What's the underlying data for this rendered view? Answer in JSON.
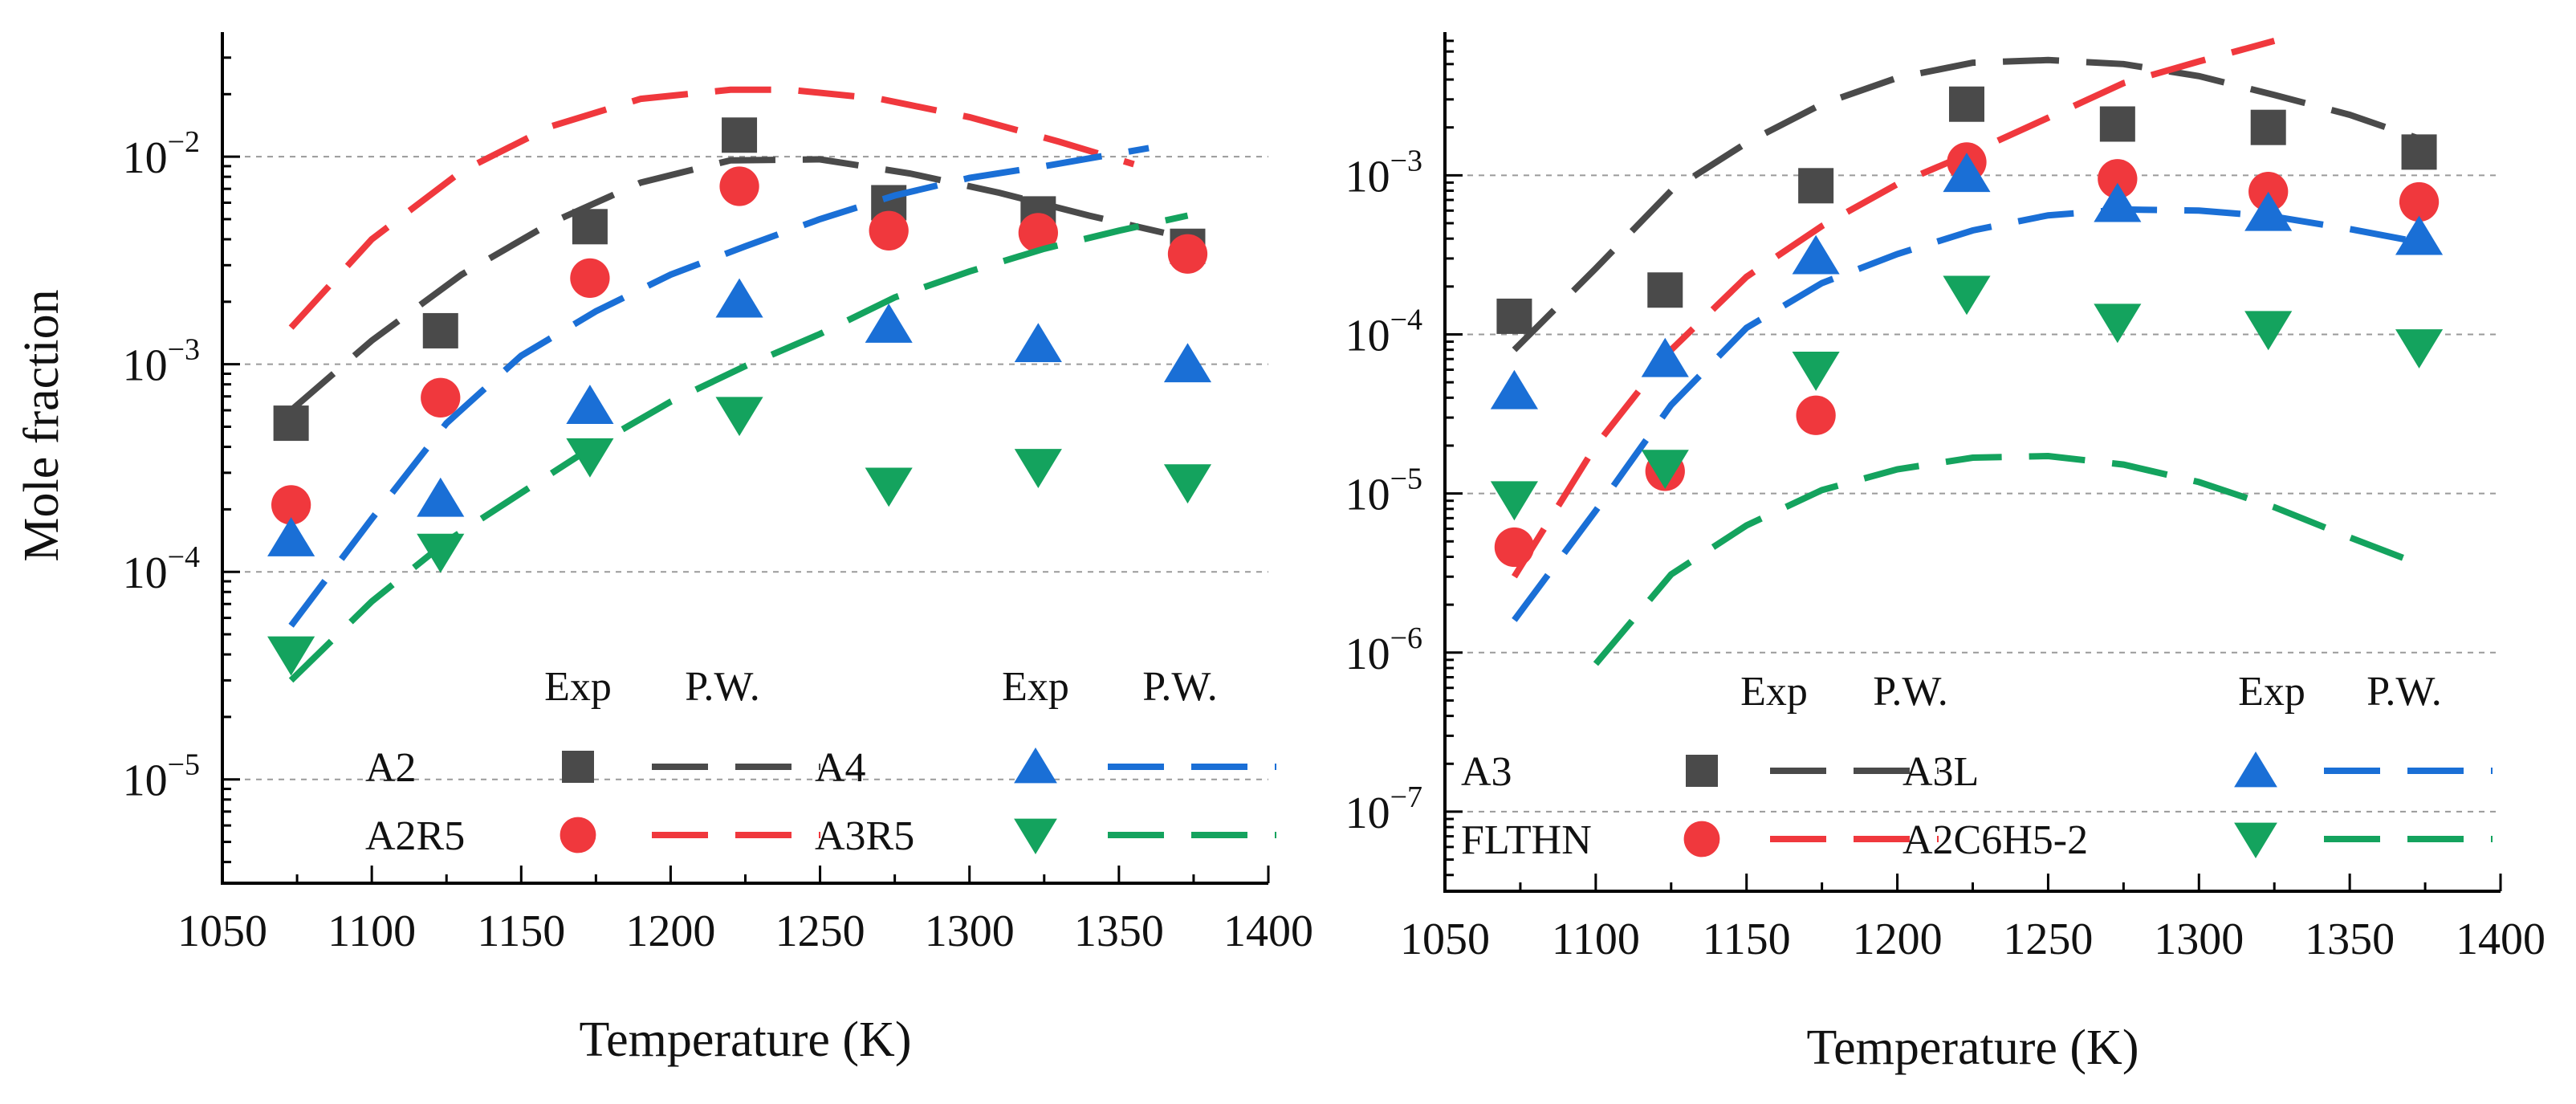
{
  "chart_data": [
    {
      "type": "scatter",
      "title": "",
      "xlabel": "Temperature (K)",
      "ylabel": "Mole fraction",
      "xlim": [
        1050,
        1400
      ],
      "ylim_log10": [
        -5.5,
        -1.4
      ],
      "y_scale": "log",
      "x_ticks": [
        "1050",
        "1100",
        "1150",
        "1200",
        "1250",
        "1300",
        "1350",
        "1400"
      ],
      "y_ticks": [
        {
          "base": "10",
          "exp": "−2",
          "value": 0.01
        },
        {
          "base": "10",
          "exp": "−3",
          "value": 0.001
        },
        {
          "base": "10",
          "exp": "−4",
          "value": 0.0001
        },
        {
          "base": "10",
          "exp": "−5",
          "value": 1e-05
        }
      ],
      "grid": "horizontal-dashed",
      "legend": {
        "headers": [
          "Exp",
          "P.W."
        ],
        "entries": [
          {
            "name": "A2",
            "color": "#4a4a4a",
            "marker": "square"
          },
          {
            "name": "A4",
            "color": "#1a6fd6",
            "marker": "triangle-up"
          },
          {
            "name": "A2R5",
            "color": "#f0383d",
            "marker": "circle"
          },
          {
            "name": "A3R5",
            "color": "#14a35e",
            "marker": "triangle-down"
          }
        ]
      },
      "series": [
        {
          "name": "A2",
          "color": "#4a4a4a",
          "marker": "square",
          "exp": {
            "x": [
              1073,
              1123,
              1173,
              1223,
              1273,
              1323,
              1373
            ],
            "y": [
              0.00052,
              0.00145,
              0.0046,
              0.0127,
              0.006,
              0.0053,
              0.0037
            ]
          },
          "model": {
            "x": [
              1073,
              1100,
              1130,
              1160,
              1190,
              1220,
              1250,
              1280,
              1310,
              1340,
              1365
            ],
            "y": [
              0.0006,
              0.0013,
              0.0027,
              0.0048,
              0.0075,
              0.0096,
              0.0097,
              0.0083,
              0.0067,
              0.0052,
              0.0043
            ]
          }
        },
        {
          "name": "A2R5",
          "color": "#f0383d",
          "marker": "circle",
          "exp": {
            "x": [
              1073,
              1123,
              1173,
              1223,
              1273,
              1323,
              1373
            ],
            "y": [
              0.00021,
              0.00069,
              0.0026,
              0.0072,
              0.0044,
              0.0043,
              0.0034
            ]
          },
          "model": {
            "x": [
              1073,
              1100,
              1130,
              1160,
              1190,
              1220,
              1240,
              1270,
              1300,
              1330,
              1355
            ],
            "y": [
              0.0015,
              0.004,
              0.0085,
              0.014,
              0.019,
              0.021,
              0.021,
              0.019,
              0.0155,
              0.0118,
              0.0092
            ]
          }
        },
        {
          "name": "A4",
          "color": "#1a6fd6",
          "marker": "triangle-up",
          "exp": {
            "x": [
              1073,
              1123,
              1173,
              1223,
              1273,
              1323,
              1373
            ],
            "y": [
              0.000145,
              0.000225,
              0.00063,
              0.00205,
              0.00155,
              0.00125,
              0.001
            ]
          },
          "model": {
            "x": [
              1073,
              1100,
              1125,
              1150,
              1175,
              1200,
              1225,
              1250,
              1275,
              1300,
              1325,
              1360
            ],
            "y": [
              5.5e-05,
              0.00018,
              0.00052,
              0.0011,
              0.0018,
              0.0027,
              0.0037,
              0.005,
              0.0065,
              0.0079,
              0.009,
              0.011
            ]
          }
        },
        {
          "name": "A3R5",
          "color": "#14a35e",
          "marker": "triangle-down",
          "exp": {
            "x": [
              1073,
              1123,
              1173,
              1223,
              1273,
              1323,
              1373
            ],
            "y": [
              4e-05,
              0.000125,
              0.00036,
              0.00057,
              0.00026,
              0.00032,
              0.00027
            ]
          },
          "model": {
            "x": [
              1073,
              1100,
              1125,
              1150,
              1175,
              1200,
              1225,
              1250,
              1275,
              1300,
              1325,
              1350,
              1373
            ],
            "y": [
              3e-05,
              7.2e-05,
              0.00014,
              0.00024,
              0.00041,
              0.00066,
              0.00098,
              0.0014,
              0.0021,
              0.0028,
              0.0036,
              0.0044,
              0.0052
            ]
          }
        }
      ]
    },
    {
      "type": "scatter",
      "title": "",
      "xlabel": "Temperature (K)",
      "ylabel": "",
      "xlim": [
        1050,
        1400
      ],
      "ylim_log10": [
        -7.5,
        -2.1
      ],
      "y_scale": "log",
      "x_ticks": [
        "1050",
        "1100",
        "1150",
        "1200",
        "1250",
        "1300",
        "1350",
        "1400"
      ],
      "y_ticks": [
        {
          "base": "10",
          "exp": "−3",
          "value": 0.001
        },
        {
          "base": "10",
          "exp": "−4",
          "value": 0.0001
        },
        {
          "base": "10",
          "exp": "−5",
          "value": 1e-05
        },
        {
          "base": "10",
          "exp": "−6",
          "value": 1e-06
        },
        {
          "base": "10",
          "exp": "−7",
          "value": 1e-07
        }
      ],
      "grid": "horizontal-dashed",
      "legend": {
        "headers": [
          "Exp",
          "P.W."
        ],
        "entries": [
          {
            "name": "A3",
            "color": "#4a4a4a",
            "marker": "square"
          },
          {
            "name": "A3L",
            "color": "#1a6fd6",
            "marker": "triangle-up"
          },
          {
            "name": "FLTHN",
            "color": "#f0383d",
            "marker": "circle"
          },
          {
            "name": "A2C6H5-2",
            "color": "#14a35e",
            "marker": "triangle-down"
          }
        ]
      },
      "series": [
        {
          "name": "A3",
          "color": "#4a4a4a",
          "marker": "square",
          "exp": {
            "x": [
              1073,
              1123,
              1173,
              1223,
              1273,
              1323,
              1373
            ],
            "y": [
              0.00013,
              0.00019,
              0.00086,
              0.0028,
              0.0021,
              0.002,
              0.0014
            ]
          },
          "model": {
            "x": [
              1073,
              1100,
              1125,
              1150,
              1175,
              1200,
              1225,
              1250,
              1275,
              1300,
              1325,
              1350,
              1373
            ],
            "y": [
              8e-05,
              0.00026,
              0.0008,
              0.0016,
              0.0028,
              0.0041,
              0.0051,
              0.0053,
              0.005,
              0.0042,
              0.0032,
              0.0024,
              0.0017
            ]
          }
        },
        {
          "name": "FLTHN",
          "color": "#f0383d",
          "marker": "circle",
          "exp": {
            "x": [
              1073,
              1123,
              1173,
              1223,
              1273,
              1323,
              1373
            ],
            "y": [
              4.6e-06,
              1.38e-05,
              3.1e-05,
              0.00121,
              0.00095,
              0.00079,
              0.00068
            ]
          },
          "model": {
            "x": [
              1073,
              1100,
              1125,
              1150,
              1175,
              1200,
              1225,
              1250,
              1275,
              1300,
              1325
            ],
            "y": [
              3e-06,
              2e-05,
              8e-05,
              0.00023,
              0.00048,
              0.00088,
              0.0014,
              0.0023,
              0.0038,
              0.0052,
              0.007
            ]
          }
        },
        {
          "name": "A3L",
          "color": "#1a6fd6",
          "marker": "triangle-up",
          "exp": {
            "x": [
              1073,
              1123,
              1173,
              1223,
              1273,
              1323,
              1373
            ],
            "y": [
              4.4e-05,
              7e-05,
              0.00031,
              0.00102,
              0.00066,
              0.00058,
              0.00041
            ]
          },
          "model": {
            "x": [
              1073,
              1100,
              1125,
              1150,
              1175,
              1200,
              1225,
              1250,
              1275,
              1300,
              1325,
              1350,
              1373
            ],
            "y": [
              1.6e-06,
              7.8e-06,
              3.6e-05,
              0.00011,
              0.00021,
              0.00032,
              0.00045,
              0.00056,
              0.00061,
              0.0006,
              0.00055,
              0.00046,
              0.00038
            ]
          }
        },
        {
          "name": "A2C6H5-2",
          "color": "#14a35e",
          "marker": "triangle-down",
          "exp": {
            "x": [
              1073,
              1123,
              1173,
              1223,
              1273,
              1323,
              1373
            ],
            "y": [
              9.2e-06,
              1.45e-05,
              6e-05,
              0.00018,
              0.00012,
              0.000108,
              8.3e-05
            ]
          },
          "model": {
            "x": [
              1100,
              1125,
              1150,
              1175,
              1200,
              1225,
              1250,
              1275,
              1300,
              1325,
              1350,
              1373
            ],
            "y": [
              8.5e-07,
              3.1e-06,
              6.3e-06,
              1.05e-05,
              1.42e-05,
              1.68e-05,
              1.72e-05,
              1.52e-05,
              1.18e-05,
              8.2e-06,
              5.3e-06,
              3.6e-06
            ]
          }
        }
      ]
    }
  ]
}
